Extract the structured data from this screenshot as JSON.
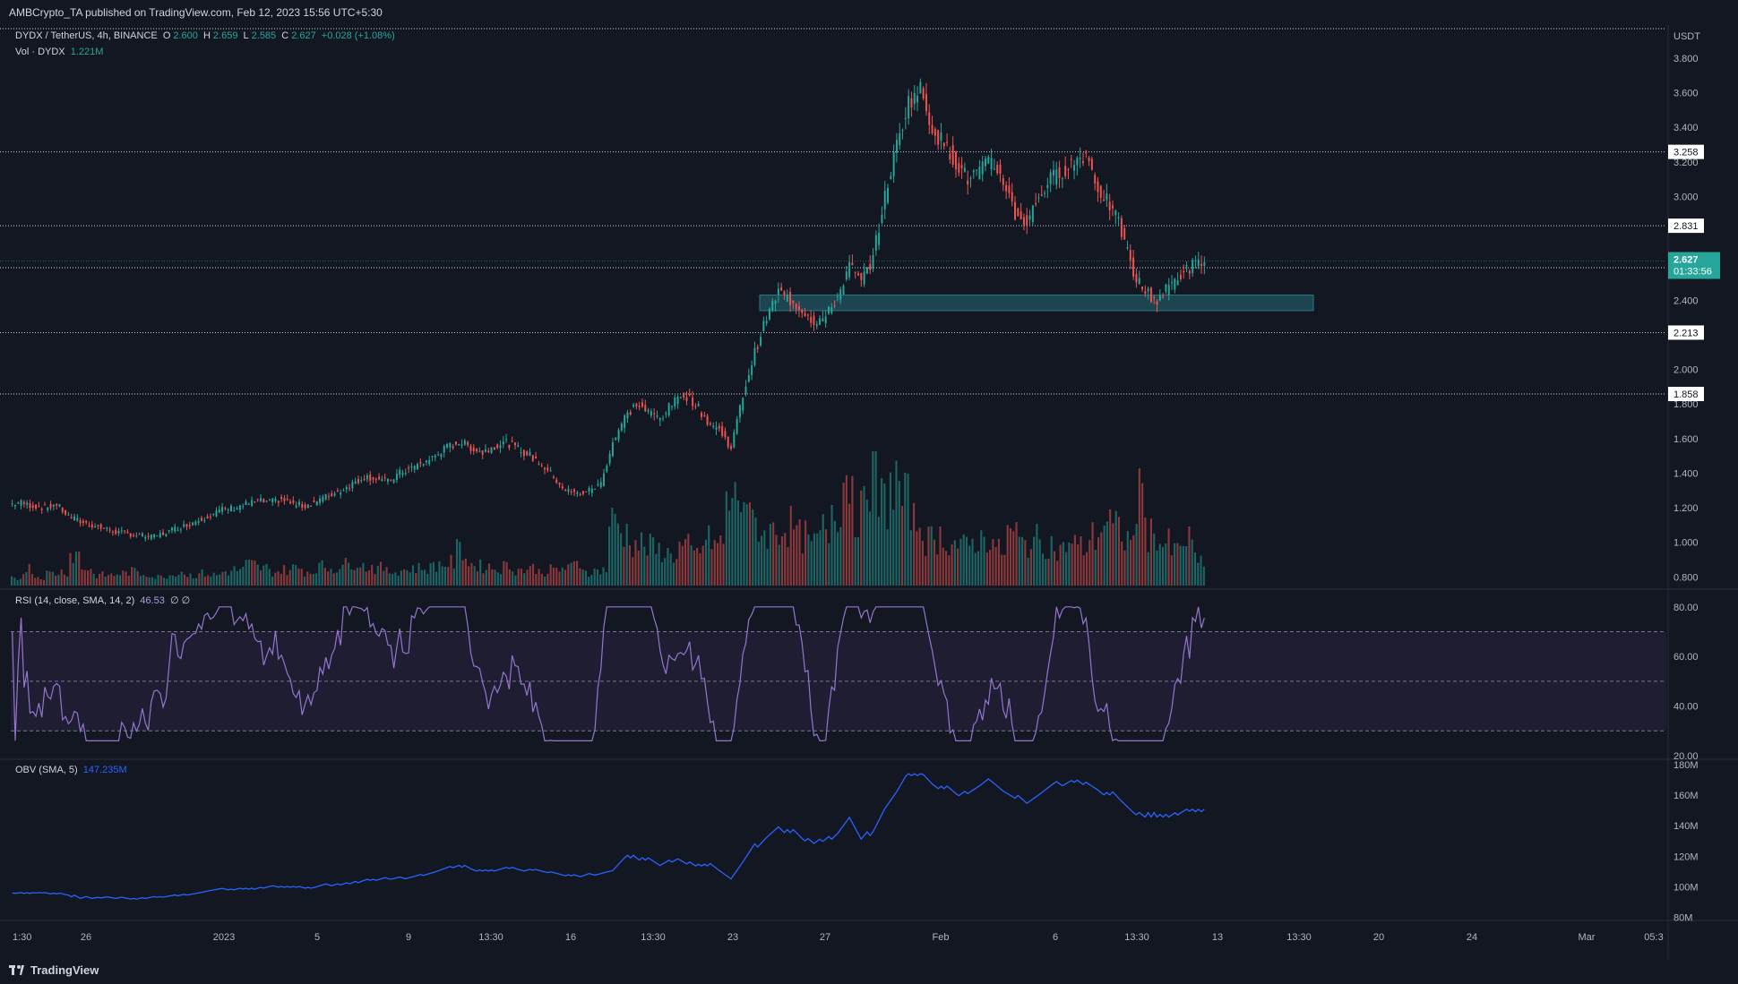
{
  "publisher": "AMBCrypto_TA published on TradingView.com, Feb 12, 2023 15:56 UTC+5:30",
  "footer_brand": "TradingView",
  "legend": {
    "symbol": "DYDX / TetherUS, 4h, BINANCE",
    "o_label": "O",
    "o": "2.600",
    "h_label": "H",
    "h": "2.659",
    "l_label": "L",
    "l": "2.585",
    "c_label": "C",
    "c": "2.627",
    "change": "+0.028 (+1.08%)",
    "vol_label": "Vol · DYDX",
    "vol": "1.221M",
    "rsi_label": "RSI (14, close, SMA, 14, 2)",
    "rsi": "46.53",
    "rsi_extra": "∅ ∅",
    "obv_label": "OBV (SMA, 5)",
    "obv": "147.235M"
  },
  "colors": {
    "up": "#26a69a",
    "down": "#ef5350",
    "rsi": "#9575cd",
    "obv": "#2962ff",
    "zone": "#1e4d59"
  },
  "chart_data": [
    {
      "type": "candlestick",
      "title": "DYDX / TetherUS, 4h, BINANCE",
      "currency": "USDT",
      "ylim": [
        0.75,
        3.95
      ],
      "y_ticks": [
        "3.800",
        "3.600",
        "3.400",
        "3.200",
        "3.000",
        "2.400",
        "2.000",
        "1.800",
        "1.600",
        "1.400",
        "1.200",
        "1.000",
        "0.800"
      ],
      "x_ticks": [
        "1:30",
        "26",
        "2023",
        "5",
        "9",
        "13:30",
        "16",
        "13:30",
        "23",
        "27",
        "Feb",
        "6",
        "13:30",
        "13",
        "13:30",
        "20",
        "24",
        "Mar",
        "05:3"
      ],
      "horizontal_levels": [
        {
          "value": 3.258,
          "label": "3.258"
        },
        {
          "value": 2.831,
          "label": "2.831"
        },
        {
          "value": 2.588,
          "label": "2.588"
        },
        {
          "value": 2.213,
          "label": "2.213"
        },
        {
          "value": 1.858,
          "label": "1.858"
        }
      ],
      "current_price": {
        "value": 2.627,
        "label": "2.627",
        "countdown": "01:33:56"
      },
      "support_zone": {
        "from": 2.34,
        "to": 2.43
      },
      "price_path": [
        1.22,
        1.23,
        1.21,
        1.2,
        1.22,
        1.15,
        1.12,
        1.1,
        1.08,
        1.06,
        1.05,
        1.04,
        1.03,
        1.05,
        1.08,
        1.1,
        1.13,
        1.16,
        1.19,
        1.2,
        1.22,
        1.24,
        1.23,
        1.25,
        1.22,
        1.21,
        1.24,
        1.27,
        1.3,
        1.34,
        1.38,
        1.37,
        1.35,
        1.4,
        1.43,
        1.46,
        1.5,
        1.55,
        1.58,
        1.55,
        1.52,
        1.56,
        1.58,
        1.54,
        1.5,
        1.45,
        1.38,
        1.3,
        1.28,
        1.3,
        1.34,
        1.58,
        1.72,
        1.8,
        1.75,
        1.72,
        1.8,
        1.86,
        1.8,
        1.7,
        1.65,
        1.55,
        1.85,
        2.1,
        2.3,
        2.45,
        2.4,
        2.35,
        2.28,
        2.3,
        2.42,
        2.6,
        2.5,
        2.65,
        3.0,
        3.3,
        3.55,
        3.62,
        3.4,
        3.3,
        3.2,
        3.1,
        3.15,
        3.2,
        3.1,
        2.9,
        2.85,
        3.0,
        3.1,
        3.15,
        3.2,
        3.25,
        3.05,
        2.95,
        2.8,
        2.55,
        2.45,
        2.4,
        2.48,
        2.55,
        2.6,
        2.627
      ],
      "volume_path": [
        0.2,
        0.5,
        0.25,
        0.35,
        0.4,
        0.9,
        0.5,
        0.3,
        0.3,
        0.35,
        0.4,
        0.35,
        0.25,
        0.3,
        0.4,
        0.3,
        0.35,
        0.3,
        0.4,
        0.45,
        0.6,
        0.5,
        0.4,
        0.45,
        0.5,
        0.4,
        0.55,
        0.5,
        0.6,
        0.7,
        0.55,
        0.5,
        0.4,
        0.45,
        0.5,
        0.5,
        0.6,
        0.65,
        1.0,
        0.6,
        0.55,
        0.5,
        0.55,
        0.45,
        0.5,
        0.4,
        0.45,
        0.5,
        0.6,
        0.4,
        0.45,
        1.8,
        1.5,
        1.2,
        1.1,
        1.0,
        0.9,
        1.1,
        0.9,
        1.3,
        1.2,
        2.4,
        2.6,
        1.8,
        1.5,
        1.6,
        1.7,
        1.4,
        1.2,
        1.6,
        2.3,
        3.1,
        2.1,
        3.3,
        2.4,
        2.9,
        2.4,
        1.8,
        1.3,
        1.4,
        1.2,
        1.1,
        1.3,
        1.4,
        1.0,
        1.5,
        1.2,
        1.3,
        1.2,
        1.0,
        1.2,
        1.1,
        1.4,
        1.8,
        1.6,
        1.3,
        2.5,
        1.5,
        1.2,
        1.0,
        1.3,
        0.7
      ],
      "rsi": {
        "ylim": [
          20,
          85
        ],
        "y_ticks": [
          "80.00",
          "60.00",
          "40.00",
          "20.00"
        ],
        "bands": [
          70,
          50,
          30
        ]
      },
      "obv": {
        "ylim": [
          78,
          180
        ],
        "y_ticks": [
          "180M",
          "160M",
          "140M",
          "120M",
          "100M",
          "80M"
        ]
      }
    }
  ]
}
